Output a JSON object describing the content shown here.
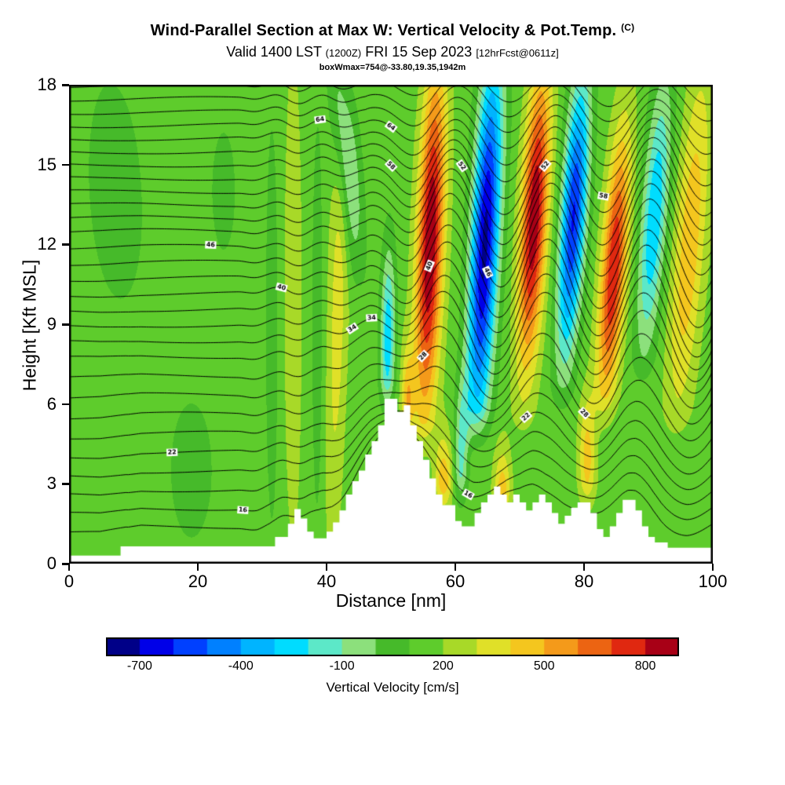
{
  "header": {
    "title_main": "Wind-Parallel Section at Max W: Vertical Velocity & Pot.Temp.",
    "title_unit": "(C)",
    "valid_prefix": "Valid 1400 LST",
    "valid_ztime": "(1200Z)",
    "valid_date": "FRI 15 Sep 2023",
    "fcst_tag": "[12hrFcst@0611z]",
    "boxw_annotation": "boxWmax=754@-33.80,19.35,1942m"
  },
  "chart_data": {
    "type": "heatmap",
    "title": "Wind-Parallel Section at Max W: Vertical Velocity & Pot.Temp. (C)",
    "subtitle": "Valid 1400 LST (1200Z) FRI 15 Sep 2023 [12hrFcst@0611z]",
    "xlabel": "Distance [nm]",
    "ylabel": "Height [Kft MSL]",
    "xlim": [
      0,
      100
    ],
    "ylim": [
      0,
      18
    ],
    "xticks": [
      0,
      20,
      40,
      60,
      80,
      100
    ],
    "yticks": [
      0,
      3,
      6,
      9,
      12,
      15,
      18
    ],
    "fill_field": "vertical velocity [cm/s]",
    "line_field": "potential temperature [C]",
    "wmax_cms": 754,
    "background_cms": 150,
    "levels": {
      "min": -800,
      "max": 900,
      "step": 100
    },
    "palette": [
      "#000088",
      "#0000e8",
      "#0040ff",
      "#0080ff",
      "#00b4ff",
      "#00dcff",
      "#5ce8c8",
      "#8ce07c",
      "#46ba2a",
      "#5ecc2c",
      "#a8d928",
      "#e0e028",
      "#f4c61e",
      "#f49a1a",
      "#ec6412",
      "#e02810",
      "#a80016"
    ],
    "colorbar": {
      "label": "Vertical Velocity [cm/s]",
      "tick_values": [
        -700,
        -400,
        -100,
        200,
        500,
        800
      ]
    },
    "bands": [
      {
        "x0": 31.5,
        "tilt": 0,
        "w": 1.0,
        "peak": -115,
        "zp": 9,
        "zs": 8,
        "zmin": 0
      },
      {
        "x0": 34.8,
        "tilt": 0,
        "w": 1.3,
        "peak": 145,
        "zp": 10,
        "zs": 9,
        "zmin": 0
      },
      {
        "x0": 38.6,
        "tilt": 0,
        "w": 0.9,
        "peak": -115,
        "zp": 9,
        "zs": 8,
        "zmin": 0
      },
      {
        "x0": 41.8,
        "tilt": 0.1,
        "w": 1.5,
        "peak": 205,
        "zp": 10,
        "zs": 9,
        "zmin": 0
      },
      {
        "x0": 45.0,
        "tilt": -0.35,
        "w": 1.8,
        "peak": -330,
        "zp": 15.5,
        "zs": 4.0,
        "zmin": 9
      },
      {
        "x0": 49.6,
        "tilt": 0.05,
        "w": 1.1,
        "peak": -430,
        "zp": 8.5,
        "zs": 3.2,
        "zmin": 5
      },
      {
        "x0": 52.6,
        "tilt": 0,
        "w": 1.0,
        "peak": 310,
        "zp": 6,
        "zs": 2.2,
        "zmin": 4.2
      },
      {
        "x0": 55.8,
        "tilt": 0.15,
        "w": 2.0,
        "peak": 760,
        "zp": 12,
        "zs": 6.5,
        "zmin": 3.5
      },
      {
        "x0": 58.2,
        "tilt": 0,
        "w": 1.4,
        "peak": 330,
        "zp": 3,
        "zs": 1.8,
        "zmin": 1.2
      },
      {
        "x0": 61.5,
        "tilt": 0.1,
        "w": 1.1,
        "peak": -290,
        "zp": 4,
        "zs": 2.6,
        "zmin": 1.5
      },
      {
        "x0": 64.2,
        "tilt": 0.2,
        "w": 2.1,
        "peak": -880,
        "zp": 12,
        "zs": 7,
        "zmin": 4
      },
      {
        "x0": 67.3,
        "tilt": 0,
        "w": 1.3,
        "peak": 330,
        "zp": 2.5,
        "zs": 1.8,
        "zmin": 1
      },
      {
        "x0": 71.6,
        "tilt": 0.22,
        "w": 2.0,
        "peak": 740,
        "zp": 13,
        "zs": 5.5,
        "zmin": 4
      },
      {
        "x0": 77.6,
        "tilt": 0.25,
        "w": 1.9,
        "peak": -760,
        "zp": 13,
        "zs": 5.2,
        "zmin": 5
      },
      {
        "x0": 80.5,
        "tilt": 0,
        "w": 1.3,
        "peak": 300,
        "zp": 4,
        "zs": 2.2,
        "zmin": 1.2
      },
      {
        "x0": 84.3,
        "tilt": 0.28,
        "w": 1.9,
        "peak": 650,
        "zp": 11,
        "zs": 5,
        "zmin": 4.5
      },
      {
        "x0": 90.0,
        "tilt": 0.3,
        "w": 2.0,
        "peak": -450,
        "zp": 13,
        "zs": 5,
        "zmin": 6
      },
      {
        "x0": 95.8,
        "tilt": 0.3,
        "w": 2.4,
        "peak": 330,
        "zp": 12,
        "zs": 6.5,
        "zmin": 4
      },
      {
        "x0": 8.0,
        "tilt": -0.2,
        "w": 4.5,
        "peak": -112,
        "zp": 14,
        "zs": 4.5,
        "zmin": 0
      },
      {
        "x0": 19.0,
        "tilt": 0,
        "w": 3.5,
        "peak": -112,
        "zp": 3.5,
        "zs": 2.8,
        "zmin": 0
      },
      {
        "x0": 24.0,
        "tilt": 0,
        "w": 2.0,
        "peak": -108,
        "zp": 14,
        "zs": 2.5,
        "zmin": 0
      }
    ],
    "terrain_profile_nm_kft": [
      [
        0,
        0.3
      ],
      [
        8,
        0.65
      ],
      [
        32,
        1.0
      ],
      [
        34,
        1.5
      ],
      [
        35,
        2.05
      ],
      [
        36,
        1.7
      ],
      [
        37,
        1.2
      ],
      [
        38,
        0.95
      ],
      [
        40,
        1.2
      ],
      [
        41,
        1.55
      ],
      [
        42,
        2.0
      ],
      [
        43,
        2.6
      ],
      [
        44,
        3.1
      ],
      [
        45,
        3.5
      ],
      [
        46,
        4.1
      ],
      [
        47,
        4.6
      ],
      [
        48,
        5.2
      ],
      [
        49,
        6.2
      ],
      [
        51,
        5.7
      ],
      [
        52,
        5.95
      ],
      [
        53,
        5.2
      ],
      [
        54,
        4.6
      ],
      [
        55,
        3.9
      ],
      [
        56,
        3.2
      ],
      [
        57,
        2.6
      ],
      [
        58,
        2.2
      ],
      [
        60,
        1.6
      ],
      [
        61,
        1.4
      ],
      [
        63,
        1.9
      ],
      [
        64,
        2.3
      ],
      [
        65,
        2.6
      ],
      [
        66,
        2.9
      ],
      [
        67,
        2.6
      ],
      [
        68,
        2.3
      ],
      [
        69,
        2.6
      ],
      [
        70,
        2.3
      ],
      [
        71,
        2.0
      ],
      [
        72,
        2.3
      ],
      [
        73,
        2.6
      ],
      [
        74,
        2.3
      ],
      [
        75,
        1.9
      ],
      [
        76,
        1.5
      ],
      [
        77,
        1.8
      ],
      [
        78,
        2.1
      ],
      [
        79,
        2.3
      ],
      [
        81,
        1.9
      ],
      [
        82,
        1.3
      ],
      [
        83,
        1.0
      ],
      [
        84,
        1.4
      ],
      [
        85,
        1.9
      ],
      [
        86,
        2.4
      ],
      [
        88,
        2.0
      ],
      [
        89,
        1.4
      ],
      [
        90,
        1.0
      ],
      [
        91,
        0.8
      ],
      [
        93,
        0.6
      ]
    ],
    "isentropes": {
      "z_start": 0.9,
      "spacing_zones": [
        [
          7,
          0.75
        ],
        [
          12,
          0.6
        ],
        [
          18.4,
          0.5
        ]
      ],
      "lift_scale": 0.9,
      "lift_decay_kft": 5.5,
      "wave_x_ref_nm": 55,
      "wavelength_nm": 15.5,
      "phase_tilt_nm_per_kft": 0.22,
      "ramp_start_nm": 46,
      "ramp_length_nm": 10,
      "amp_base_kft": 0.25,
      "amp_peak_kft": 1.55,
      "amp_center_kft": 11,
      "amp_width_kft": 6.5,
      "upstream_amp_kft": 0.18,
      "upstream_wavelength_nm": 7.5,
      "label_base_c": 14,
      "label_step_c": 2
    }
  }
}
